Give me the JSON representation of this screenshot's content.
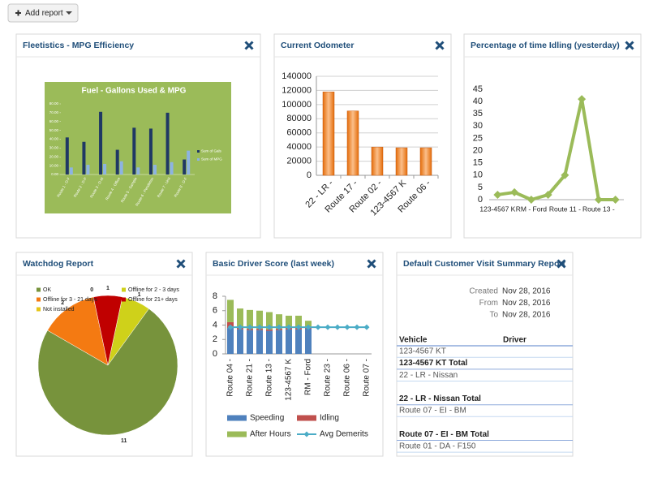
{
  "toolbar": {
    "button": "Add report"
  },
  "widgets": [
    {
      "title": "Fleetistics - MPG Efficiency",
      "chart_data": {
        "type": "bar",
        "title": "Fuel - Gallons Used & MPG",
        "categories": [
          "Route 1 - D-F",
          "Route 2 - D-P",
          "Route 3 - D-M",
          "Route 4 - Office",
          "Route 5 - Sample",
          "Route 6 - Pendleton",
          "Route 7 - Unit",
          "Route 8 - D-F"
        ],
        "series": [
          {
            "name": "Sum of Gals",
            "color": "#1f3864",
            "values": [
              42,
              37,
              71,
              28,
              53,
              52,
              70,
              17
            ]
          },
          {
            "name": "Sum of MPG",
            "color": "#8db3e2",
            "values": [
              8,
              11,
              12,
              15,
              8,
              11,
              14,
              27
            ]
          }
        ],
        "ylim": [
          0,
          80
        ],
        "yticks": [
          {
            "value": 0,
            "label": "0.00"
          },
          {
            "value": 10,
            "label": "10.00"
          },
          {
            "value": 20,
            "label": "20.00"
          },
          {
            "value": 30,
            "label": "30.00"
          },
          {
            "value": 40,
            "label": "40.00"
          },
          {
            "value": 50,
            "label": "50.00"
          },
          {
            "value": 60,
            "label": "60.00"
          },
          {
            "value": 70,
            "label": "70.00"
          },
          {
            "value": 80,
            "label": "80.00"
          }
        ]
      }
    },
    {
      "title": "Current Odometer",
      "chart_data": {
        "type": "bar",
        "categories": [
          "22 - LR -",
          "Route 17 -",
          "Route 02 -",
          "123-4567 K",
          "Route 06 -"
        ],
        "values": [
          118000,
          91000,
          40000,
          39000,
          39000
        ],
        "color": "#e46c0a",
        "ylim": [
          0,
          140000
        ],
        "yticks": [
          0,
          20000,
          40000,
          60000,
          80000,
          100000,
          120000,
          140000
        ],
        "grid": true
      }
    },
    {
      "title": "Percentage of time Idling (yesterday)",
      "chart_data": {
        "type": "line",
        "categories": [
          "123-4567 K",
          null,
          "RM - Ford",
          null,
          "Route 11 -",
          null,
          "Route 13 -",
          null
        ],
        "values": [
          2,
          3,
          0,
          2,
          10,
          41,
          0,
          0
        ],
        "color": "#9bbb59",
        "ylim": [
          0,
          45
        ],
        "yticks": [
          0,
          5,
          10,
          15,
          20,
          25,
          30,
          35,
          40,
          45
        ]
      }
    },
    {
      "title": "Watchdog Report",
      "chart_data": {
        "type": "pie",
        "labels": [
          "Offline for 2 - 3 days",
          "OK",
          "Offline for 3 - 21 days",
          "Not installed",
          "Offline for 21+ days"
        ],
        "values": [
          1,
          11,
          2,
          0,
          1
        ],
        "colors": [
          "#cfd11a",
          "#77933c",
          "#f47a12",
          "#e6c619",
          "#c00000"
        ]
      }
    },
    {
      "title": "Basic Driver Score (last week)",
      "chart_data": {
        "type": "bar",
        "stacked": true,
        "categories": [
          "Route 04 -",
          null,
          "Route 21 -",
          null,
          "Route 13 -",
          null,
          "123-4567 K",
          null,
          "RM - Ford",
          null,
          "Route 23 -",
          null,
          "Route 06 -",
          null,
          "Route 07 -"
        ],
        "series": [
          {
            "name": "Speeding",
            "color": "#4f81bd",
            "values": [
              3.6,
              3.4,
              3.3,
              3.3,
              3.2,
              3.3,
              3.4,
              3.4,
              3.5,
              0,
              0,
              0,
              0,
              0,
              0
            ]
          },
          {
            "name": "Idling",
            "color": "#c0504d",
            "values": [
              0.8,
              0.3,
              0.2,
              0.2,
              0.2,
              0.2,
              0.2,
              0.2,
              0.3,
              0,
              0,
              0,
              0,
              0,
              0
            ]
          },
          {
            "name": "After Hours",
            "color": "#9bbb59",
            "values": [
              3.1,
              2.6,
              2.6,
              2.5,
              2.4,
              2.0,
              1.7,
              1.7,
              0.8,
              0,
              0,
              0,
              0,
              0,
              0
            ]
          },
          {
            "name": "Avg Demerits",
            "color": "#4bacc6",
            "type": "line",
            "values": [
              3.7,
              3.7,
              3.7,
              3.7,
              3.7,
              3.7,
              3.7,
              3.7,
              3.7,
              3.7,
              3.7,
              3.7,
              3.7,
              3.7,
              3.7
            ]
          }
        ],
        "ylim": [
          0,
          8
        ],
        "yticks": [
          0,
          2,
          4,
          6,
          8
        ]
      }
    },
    {
      "title": "Default Customer Visit Summary Report",
      "report": {
        "fields": [
          {
            "label": "Created",
            "value": "Nov 28, 2016"
          },
          {
            "label": "From",
            "value": "Nov 28, 2016"
          },
          {
            "label": "To",
            "value": "Nov 28, 2016"
          }
        ],
        "columns": [
          "Vehicle",
          "Driver"
        ],
        "rows": [
          {
            "vehicle": "123-4567 KT",
            "bold": false
          },
          {
            "vehicle": "123-4567 KT Total",
            "bold": true
          },
          {
            "vehicle": "22 - LR - Nissan",
            "bold": false
          },
          {
            "vehicle": "22 - LR - Nissan Total",
            "bold": true
          },
          {
            "vehicle": "Route 07 - EI - BM",
            "bold": false
          },
          {
            "vehicle": "Route 07 - EI - BM Total",
            "bold": true
          },
          {
            "vehicle": "Route 01 - DA - F150",
            "bold": false
          }
        ]
      }
    }
  ]
}
